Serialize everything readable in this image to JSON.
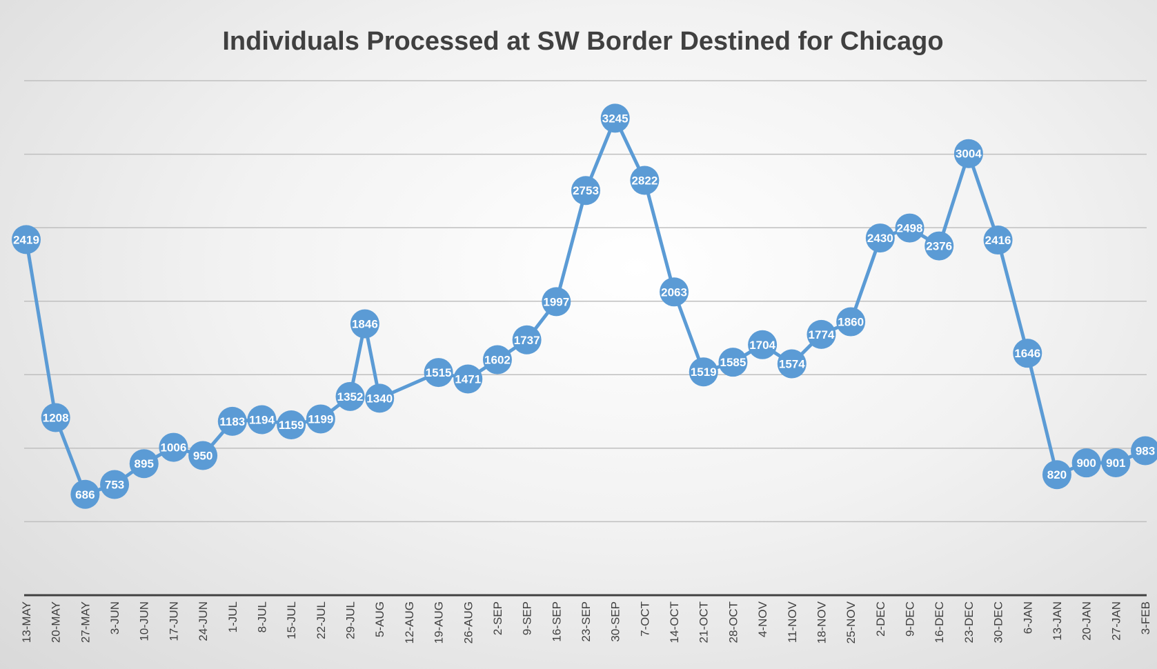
{
  "chart_data": {
    "type": "line",
    "title": "Individuals Processed at SW Border Destined for Chicago",
    "xlabel": "",
    "ylabel": "",
    "ylim": [
      0,
      3500
    ],
    "grid": true,
    "categories": [
      "13-MAY",
      "20-MAY",
      "27-MAY",
      "3-JUN",
      "10-JUN",
      "17-JUN",
      "24-JUN",
      "1-JUL",
      "8-JUL",
      "15-JUL",
      "22-JUL",
      "29-JUL",
      "5-AUG",
      "12-AUG",
      "19-AUG",
      "26-AUG",
      "2-SEP",
      "9-SEP",
      "16-SEP",
      "23-SEP",
      "30-SEP",
      "7-OCT",
      "14-OCT",
      "21-OCT",
      "28-OCT",
      "4-NOV",
      "11-NOV",
      "18-NOV",
      "25-NOV",
      "2-DEC",
      "9-DEC",
      "16-DEC",
      "23-DEC",
      "30-DEC",
      "6-JAN",
      "13-JAN",
      "20-JAN",
      "27-JAN",
      "3-FEB"
    ],
    "series": [
      {
        "color": "#5b9bd5",
        "points": [
          {
            "x": 0,
            "y": 2419
          },
          {
            "x": 1,
            "y": 1208
          },
          {
            "x": 2,
            "y": 686
          },
          {
            "x": 3,
            "y": 753
          },
          {
            "x": 4,
            "y": 895
          },
          {
            "x": 5,
            "y": 1006
          },
          {
            "x": 6,
            "y": 950
          },
          {
            "x": 7,
            "y": 1183
          },
          {
            "x": 8,
            "y": 1194
          },
          {
            "x": 9,
            "y": 1159
          },
          {
            "x": 10,
            "y": 1199
          },
          {
            "x": 11,
            "y": 1352
          },
          {
            "x": 11.5,
            "y": 1846
          },
          {
            "x": 12,
            "y": 1340
          },
          {
            "x": 14,
            "y": 1515
          },
          {
            "x": 15,
            "y": 1471
          },
          {
            "x": 16,
            "y": 1602
          },
          {
            "x": 17,
            "y": 1737
          },
          {
            "x": 18,
            "y": 1997
          },
          {
            "x": 19,
            "y": 2753
          },
          {
            "x": 20,
            "y": 3245
          },
          {
            "x": 21,
            "y": 2822
          },
          {
            "x": 22,
            "y": 2063
          },
          {
            "x": 23,
            "y": 1519
          },
          {
            "x": 24,
            "y": 1585
          },
          {
            "x": 25,
            "y": 1704
          },
          {
            "x": 26,
            "y": 1574
          },
          {
            "x": 27,
            "y": 1774
          },
          {
            "x": 28,
            "y": 1860
          },
          {
            "x": 29,
            "y": 2430
          },
          {
            "x": 30,
            "y": 2498
          },
          {
            "x": 31,
            "y": 2376
          },
          {
            "x": 32,
            "y": 3004
          },
          {
            "x": 33,
            "y": 2416
          },
          {
            "x": 34,
            "y": 1646
          },
          {
            "x": 35,
            "y": 820
          },
          {
            "x": 36,
            "y": 900
          },
          {
            "x": 37,
            "y": 901
          },
          {
            "x": 38,
            "y": 983
          }
        ]
      }
    ]
  }
}
